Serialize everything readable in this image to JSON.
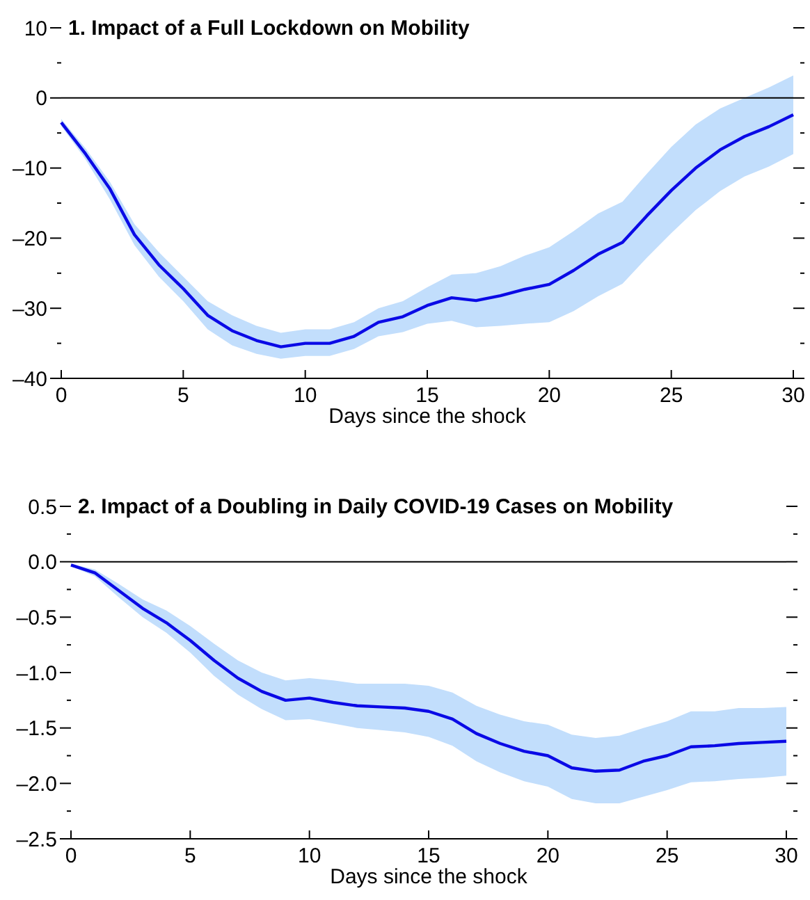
{
  "chart_data": [
    {
      "type": "line",
      "title": "1. Impact of a Full Lockdown on Mobility",
      "xlabel": "Days since the shock",
      "x": [
        0,
        1,
        2,
        3,
        4,
        5,
        6,
        7,
        8,
        9,
        10,
        11,
        12,
        13,
        14,
        15,
        16,
        17,
        18,
        19,
        20,
        21,
        22,
        23,
        24,
        25,
        26,
        27,
        28,
        29,
        30
      ],
      "xlim": [
        0,
        30
      ],
      "xticks": [
        0,
        5,
        10,
        15,
        20,
        25,
        30
      ],
      "ylim": [
        -40,
        10
      ],
      "yticks": [
        {
          "value": -40,
          "label": "–40"
        },
        {
          "value": -35,
          "label": null
        },
        {
          "value": -30,
          "label": "–30"
        },
        {
          "value": -25,
          "label": null
        },
        {
          "value": -20,
          "label": "–20"
        },
        {
          "value": -15,
          "label": null
        },
        {
          "value": -10,
          "label": "–10"
        },
        {
          "value": -5,
          "label": null
        },
        0,
        {
          "value": 5,
          "label": null
        },
        10
      ],
      "grid": false,
      "ref_lines": [
        {
          "axis": "y",
          "value": 0,
          "color": "#000000"
        }
      ],
      "series": [
        {
          "color": "#0a0ae6",
          "values": [
            -3.5,
            -8,
            -13,
            -19.5,
            -23.8,
            -27.2,
            -31,
            -33.2,
            -34.6,
            -35.5,
            -35,
            -35,
            -34,
            -32,
            -31.2,
            -29.6,
            -28.5,
            -28.9,
            -28.2,
            -27.3,
            -26.6,
            -24.6,
            -22.3,
            -20.6,
            -16.8,
            -13.2,
            -10,
            -7.4,
            -5.5,
            -4.1,
            -2.4
          ],
          "lower": [
            -4,
            -8.8,
            -14.5,
            -21,
            -25.5,
            -29,
            -33,
            -35.3,
            -36.5,
            -37.2,
            -36.8,
            -36.8,
            -35.8,
            -34,
            -33.4,
            -32.2,
            -31.8,
            -32.7,
            -32.5,
            -32.2,
            -32,
            -30.4,
            -28.3,
            -26.5,
            -22.8,
            -19.3,
            -16,
            -13.3,
            -11.2,
            -9.8,
            -8
          ],
          "upper": [
            -3,
            -7.2,
            -12,
            -18,
            -22,
            -25.5,
            -29,
            -31,
            -32.5,
            -33.5,
            -33,
            -33,
            -32,
            -30,
            -29,
            -27,
            -25.2,
            -25,
            -24,
            -22.5,
            -21.3,
            -19,
            -16.5,
            -14.8,
            -10.8,
            -7,
            -3.8,
            -1.5,
            0,
            1.5,
            3.2
          ]
        }
      ]
    },
    {
      "type": "line",
      "title": "2. Impact of a Doubling in Daily COVID-19 Cases on Mobility",
      "xlabel": "Days since the shock",
      "x": [
        0,
        1,
        2,
        3,
        4,
        5,
        6,
        7,
        8,
        9,
        10,
        11,
        12,
        13,
        14,
        15,
        16,
        17,
        18,
        19,
        20,
        21,
        22,
        23,
        24,
        25,
        26,
        27,
        28,
        29,
        30
      ],
      "xlim": [
        0,
        30
      ],
      "xticks": [
        0,
        5,
        10,
        15,
        20,
        25,
        30
      ],
      "ylim": [
        -2.5,
        0.5
      ],
      "yticks": [
        {
          "value": -2.5,
          "label": "–2.5"
        },
        {
          "value": -2.25,
          "label": null
        },
        {
          "value": -2,
          "label": "–2.0"
        },
        {
          "value": -1.75,
          "label": null
        },
        {
          "value": -1.5,
          "label": "–1.5"
        },
        {
          "value": -1.25,
          "label": null
        },
        {
          "value": -1,
          "label": "–1.0"
        },
        {
          "value": -0.75,
          "label": null
        },
        {
          "value": -0.5,
          "label": "–0.5"
        },
        {
          "value": -0.25,
          "label": null
        },
        {
          "value": 0,
          "label": "0.0"
        },
        {
          "value": 0.25,
          "label": null
        },
        0.5
      ],
      "grid": false,
      "ref_lines": [
        {
          "axis": "y",
          "value": 0,
          "color": "#000000"
        }
      ],
      "series": [
        {
          "color": "#0a0ae6",
          "values": [
            -0.03,
            -0.1,
            -0.26,
            -0.42,
            -0.55,
            -0.71,
            -0.89,
            -1.05,
            -1.17,
            -1.25,
            -1.23,
            -1.27,
            -1.3,
            -1.31,
            -1.32,
            -1.35,
            -1.42,
            -1.55,
            -1.64,
            -1.71,
            -1.75,
            -1.86,
            -1.89,
            -1.88,
            -1.8,
            -1.75,
            -1.67,
            -1.66,
            -1.64,
            -1.63,
            -1.62
          ],
          "lower": [
            -0.04,
            -0.13,
            -0.32,
            -0.5,
            -0.64,
            -0.82,
            -1.03,
            -1.2,
            -1.33,
            -1.43,
            -1.42,
            -1.46,
            -1.5,
            -1.52,
            -1.54,
            -1.58,
            -1.66,
            -1.8,
            -1.9,
            -1.98,
            -2.03,
            -2.14,
            -2.18,
            -2.18,
            -2.12,
            -2.06,
            -1.99,
            -1.98,
            -1.96,
            -1.95,
            -1.93
          ],
          "upper": [
            -0.02,
            -0.07,
            -0.2,
            -0.34,
            -0.44,
            -0.58,
            -0.74,
            -0.89,
            -1,
            -1.07,
            -1.05,
            -1.07,
            -1.1,
            -1.1,
            -1.1,
            -1.12,
            -1.18,
            -1.3,
            -1.38,
            -1.44,
            -1.47,
            -1.56,
            -1.59,
            -1.57,
            -1.5,
            -1.44,
            -1.35,
            -1.35,
            -1.32,
            -1.32,
            -1.31
          ]
        }
      ]
    }
  ]
}
